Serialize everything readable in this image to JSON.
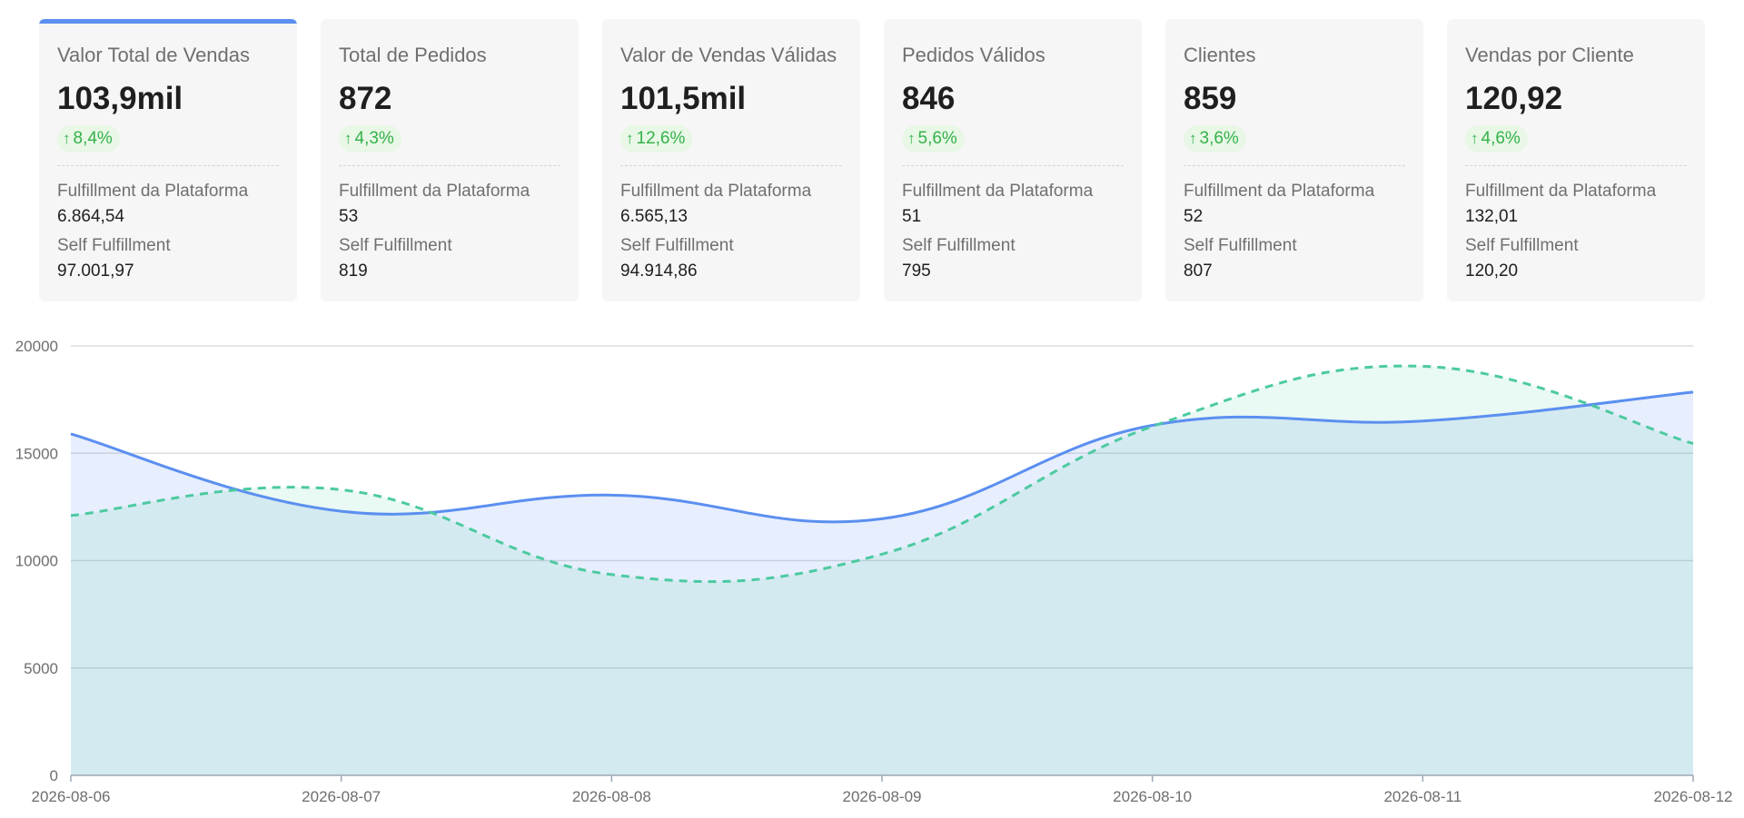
{
  "cards": [
    {
      "title": "Valor Total de Vendas",
      "value": "103,9mil",
      "trend": "8,4%",
      "platform_label": "Fulfillment da Plataforma",
      "platform_value": "6.864,54",
      "self_label": "Self Fulfillment",
      "self_value": "97.001,97",
      "selected": true
    },
    {
      "title": "Total de Pedidos",
      "value": "872",
      "trend": "4,3%",
      "platform_label": "Fulfillment da Plataforma",
      "platform_value": "53",
      "self_label": "Self Fulfillment",
      "self_value": "819",
      "selected": false
    },
    {
      "title": "Valor de Vendas Válidas",
      "value": "101,5mil",
      "trend": "12,6%",
      "platform_label": "Fulfillment da Plataforma",
      "platform_value": "6.565,13",
      "self_label": "Self Fulfillment",
      "self_value": "94.914,86",
      "selected": false
    },
    {
      "title": "Pedidos Válidos",
      "value": "846",
      "trend": "5,6%",
      "platform_label": "Fulfillment da Plataforma",
      "platform_value": "51",
      "self_label": "Self Fulfillment",
      "self_value": "795",
      "selected": false
    },
    {
      "title": "Clientes",
      "value": "859",
      "trend": "3,6%",
      "platform_label": "Fulfillment da Plataforma",
      "platform_value": "52",
      "self_label": "Self Fulfillment",
      "self_value": "807",
      "selected": false
    },
    {
      "title": "Vendas por Cliente",
      "value": "120,92",
      "trend": "4,6%",
      "platform_label": "Fulfillment da Plataforma",
      "platform_value": "132,01",
      "self_label": "Self Fulfillment",
      "self_value": "120,20",
      "selected": false
    }
  ],
  "icons": {
    "trend": "arrow-up-icon"
  },
  "colors": {
    "accent": "#5b8ff0",
    "trend_text": "#34b24a",
    "trend_bg": "#e8f7e6",
    "series_current": "#5b8ff0",
    "series_compare": "#4ccaa0"
  },
  "chart_data": {
    "type": "area",
    "x": [
      "2026-08-06",
      "2026-08-07",
      "2026-08-08",
      "2026-08-09",
      "2026-08-10",
      "2026-08-11",
      "2026-08-12"
    ],
    "series": [
      {
        "values": [
          15900,
          12300,
          13050,
          11950,
          16300,
          16500,
          17850
        ],
        "style": "solid"
      },
      {
        "values": [
          12100,
          13300,
          9350,
          10300,
          16250,
          19050,
          15450
        ],
        "style": "dashed"
      }
    ],
    "yticks": [
      0,
      5000,
      10000,
      15000,
      20000
    ],
    "ylim": [
      0,
      20000
    ],
    "grid": true
  }
}
